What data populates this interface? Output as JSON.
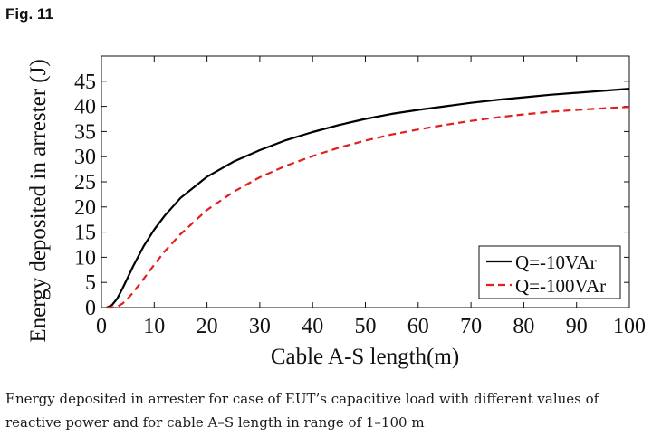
{
  "figure_label": "Fig. 11",
  "caption": "Energy deposited in arrester for case of EUT’s capacitive load with different values of reactive power and for cable A–S length in range of 1–100 m",
  "chart_data": {
    "type": "line",
    "title": "",
    "xlabel": "Cable A-S length(m)",
    "ylabel": "Energy deposited in arrester (J)",
    "xlim": [
      0,
      100
    ],
    "ylim": [
      0,
      50
    ],
    "xticks": [
      0,
      10,
      20,
      30,
      40,
      50,
      60,
      70,
      80,
      90,
      100
    ],
    "yticks": [
      0,
      5,
      10,
      15,
      20,
      25,
      30,
      35,
      40,
      45
    ],
    "grid": false,
    "legend_position": "bottom-right",
    "series": [
      {
        "name": "Q=-10VAr",
        "color": "#000000",
        "style": "solid",
        "x": [
          1,
          2,
          3,
          4,
          5,
          6,
          8,
          10,
          12,
          15,
          20,
          25,
          30,
          35,
          40,
          45,
          50,
          55,
          60,
          65,
          70,
          75,
          80,
          85,
          90,
          95,
          100
        ],
        "y": [
          0.0,
          0.5,
          1.8,
          3.8,
          6.0,
          8.2,
          12.2,
          15.5,
          18.3,
          21.8,
          26.0,
          29.0,
          31.3,
          33.3,
          34.9,
          36.3,
          37.5,
          38.5,
          39.3,
          40.0,
          40.7,
          41.3,
          41.8,
          42.3,
          42.7,
          43.1,
          43.5
        ]
      },
      {
        "name": "Q=-100VAr",
        "color": "#e02020",
        "style": "dashed",
        "x": [
          1,
          2,
          3,
          4,
          5,
          6,
          8,
          10,
          12,
          15,
          20,
          25,
          30,
          35,
          40,
          45,
          50,
          55,
          60,
          65,
          70,
          75,
          80,
          85,
          90,
          95,
          100
        ],
        "y": [
          0.0,
          0.0,
          0.2,
          0.8,
          1.8,
          3.0,
          5.7,
          8.5,
          11.2,
          14.6,
          19.4,
          23.0,
          25.9,
          28.2,
          30.1,
          31.8,
          33.2,
          34.4,
          35.4,
          36.3,
          37.1,
          37.8,
          38.4,
          38.9,
          39.3,
          39.6,
          39.9
        ]
      }
    ]
  }
}
